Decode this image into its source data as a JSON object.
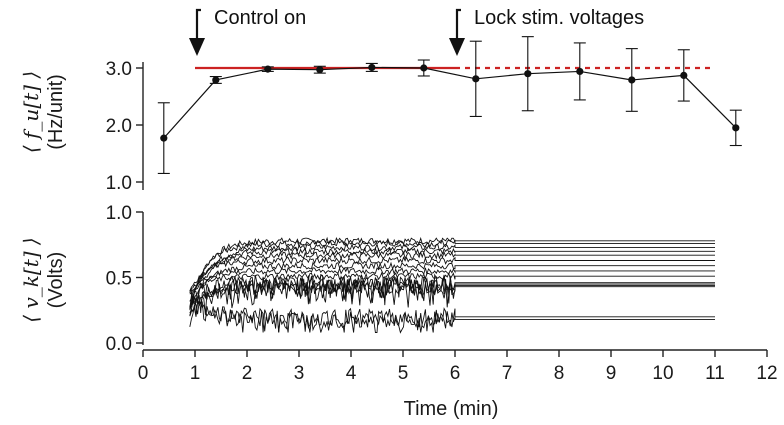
{
  "chart_data": [
    {
      "type": "line",
      "panel": "top",
      "ylabel_symbol": "⟨ f_u[t] ⟩",
      "ylabel": "(Hz/unit)",
      "ylim": [
        1.0,
        3.2
      ],
      "yticks": [
        "1.0",
        "2.0",
        "3.0"
      ],
      "target": {
        "value": 3.0,
        "solid_x": [
          1,
          6
        ],
        "dashed_x": [
          6,
          11
        ]
      },
      "series": [
        {
          "x": [
            0.4,
            1.4,
            2.4,
            3.4,
            4.4,
            5.4,
            6.4,
            7.4,
            8.4,
            9.4,
            10.4,
            11.4
          ],
          "values": [
            1.77,
            2.79,
            2.98,
            2.97,
            3.01,
            3.0,
            2.81,
            2.9,
            2.94,
            2.79,
            2.87,
            1.95
          ],
          "errors": [
            0.62,
            0.06,
            0.04,
            0.06,
            0.07,
            0.14,
            0.66,
            0.65,
            0.5,
            0.55,
            0.45,
            0.31
          ]
        }
      ],
      "annotations": [
        {
          "text": "Control on",
          "x": 1
        },
        {
          "text": "Lock stim. voltages",
          "x": 6
        }
      ],
      "colors": {
        "target": "#cc2222",
        "data": "#111111"
      }
    },
    {
      "type": "line",
      "panel": "bottom",
      "ylabel_symbol": "⟨ v_k[t] ⟩",
      "ylabel": "(Volts)",
      "ylim": [
        0.0,
        1.0
      ],
      "yticks": [
        "0.0",
        "0.5",
        "1.0"
      ],
      "xlabel": "Time (min)",
      "xlim": [
        0,
        12
      ],
      "xticks": [
        "0",
        "1",
        "2",
        "3",
        "4",
        "5",
        "6",
        "7",
        "8",
        "9",
        "10",
        "11",
        "12"
      ],
      "traces_locked_from": 6,
      "traces_end": 11,
      "trace_start": 0.9,
      "trace_final_levels": [
        0.78,
        0.76,
        0.73,
        0.7,
        0.67,
        0.63,
        0.59,
        0.55,
        0.51,
        0.46,
        0.45,
        0.44,
        0.43,
        0.2,
        0.18
      ]
    }
  ]
}
